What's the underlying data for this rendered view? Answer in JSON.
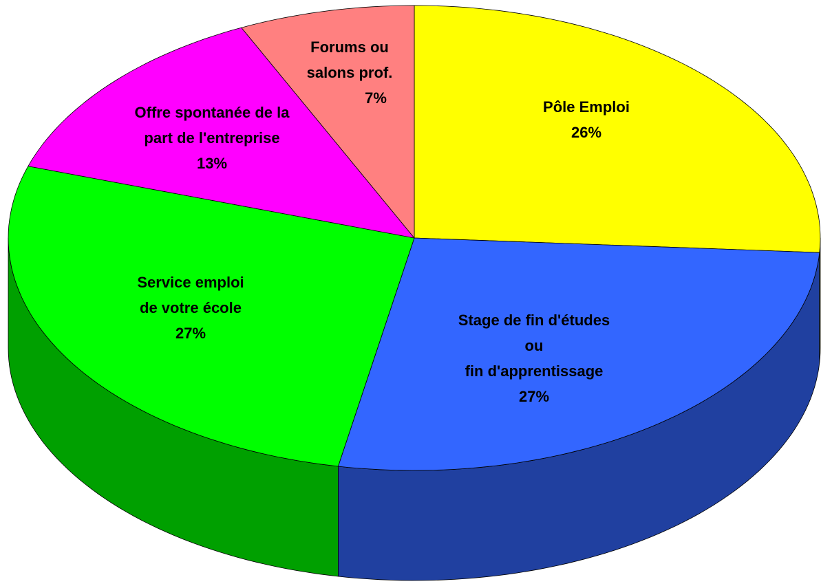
{
  "chart_data": {
    "type": "pie",
    "categories": [
      [
        "Pôle Emploi"
      ],
      [
        "Stage de fin d'études",
        "ou",
        "fin d'apprentissage"
      ],
      [
        "Service emploi",
        "de votre école"
      ],
      [
        "Offre spontanée de la",
        "part de l'entreprise"
      ],
      [
        "Forums ou",
        "salons prof."
      ]
    ],
    "values": [
      26,
      27,
      27,
      13,
      7
    ],
    "value_labels": [
      "26%",
      "27%",
      "27%",
      "13%",
      "7%"
    ],
    "colors": [
      "#ffff00",
      "#3366ff",
      "#00ff00",
      "#ff00ff",
      "#ff8080"
    ],
    "side_colors": [
      "#a0a000",
      "#2040a0",
      "#00a000",
      "#a000a0",
      "#b05050"
    ]
  }
}
